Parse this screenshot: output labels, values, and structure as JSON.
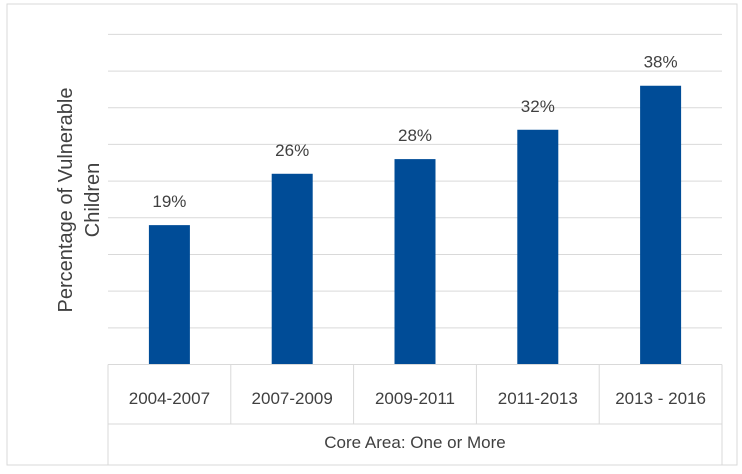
{
  "chart_data": {
    "type": "bar",
    "ylabel": "Percentage of Vulnerable Children",
    "group_label": "Core Area: One or More",
    "categories": [
      "2004-2007",
      "2007-2009",
      "2009-2011",
      "2011-2013",
      "2013 - 2016"
    ],
    "values": [
      19,
      26,
      28,
      32,
      38
    ],
    "data_labels": [
      "19%",
      "26%",
      "28%",
      "32%",
      "38%"
    ],
    "ylim": [
      0,
      45
    ],
    "grid": true,
    "legend": "none",
    "colors": {
      "bar": "#004C97",
      "grid": "#d9d9d9",
      "text": "#404040",
      "frame": "#d9d9d9"
    }
  }
}
